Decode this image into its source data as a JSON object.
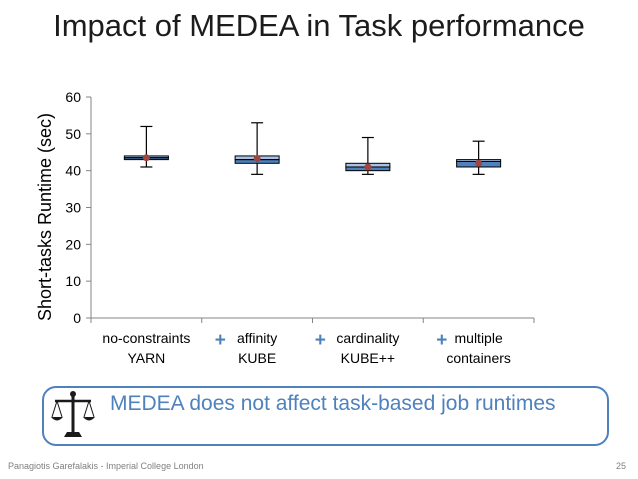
{
  "slide": {
    "title": "Impact of MEDEA in Task performance",
    "callout": "MEDEA does not affect task-based job runtimes",
    "footer_left": "Panagiotis Garefalakis - Imperial College London",
    "page_number": "25"
  },
  "icons": {
    "callout_icon": "balance-scale-icon"
  },
  "colors": {
    "box_fill": "#4f81bd",
    "box_fill_light": "#a9c2e3",
    "mean_marker": "#a0463f",
    "accent": "#4f81bd",
    "plus_marker": "#4f81bd"
  },
  "chart_data": {
    "type": "box",
    "title": "",
    "xlabel": "",
    "ylabel": "Short-tasks Runtime (sec)",
    "ylim": [
      0,
      60
    ],
    "yticks": [
      0,
      10,
      20,
      30,
      40,
      50,
      60
    ],
    "grid": false,
    "categories": [
      {
        "line1": "no-constraints",
        "line2": "YARN",
        "plus": false
      },
      {
        "line1": "affinity",
        "line2": "KUBE",
        "plus": true
      },
      {
        "line1": "cardinality",
        "line2": "KUBE++",
        "plus": true
      },
      {
        "line1": "multiple",
        "line2": "containers",
        "plus": true
      }
    ],
    "boxes": [
      {
        "min": 41,
        "q1": 43,
        "median": 43.5,
        "q3": 44,
        "max": 52,
        "mean": 43.5
      },
      {
        "min": 39,
        "q1": 42,
        "median": 43,
        "q3": 44,
        "max": 53,
        "mean": 43.3
      },
      {
        "min": 39,
        "q1": 40,
        "median": 41,
        "q3": 42,
        "max": 49,
        "mean": 41
      },
      {
        "min": 39,
        "q1": 41,
        "median": 42.5,
        "q3": 43,
        "max": 48,
        "mean": 42
      }
    ]
  }
}
